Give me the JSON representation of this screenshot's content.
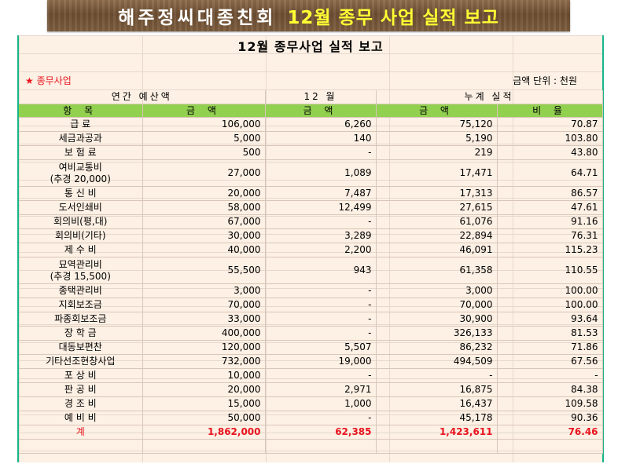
{
  "banner": {
    "org": "해주정씨대종친회",
    "title": "12월 종무 사업 실적 보고"
  },
  "sheet_title": "12월  종무사업 실적 보고",
  "section_label": "★ 종무사업",
  "unit_label": "금액 단위 : 천원",
  "header1": {
    "annual": "연간 예산액",
    "month": "12 월",
    "cumulative": "누계 실적"
  },
  "header2": {
    "item": "항  목",
    "budget": "금  액",
    "month_amount": "금  액",
    "cum_amount": "금  액",
    "ratio": "비 율"
  },
  "rows": [
    {
      "item": "급    료",
      "budget": "106,000",
      "month": "6,260",
      "cum": "75,120",
      "ratio": "70.87"
    },
    {
      "item": "세금과공과",
      "budget": "5,000",
      "month": "140",
      "cum": "5,190",
      "ratio": "103.80"
    },
    {
      "item": "보 험 료",
      "budget": "500",
      "month": "-",
      "cum": "219",
      "ratio": "43.80"
    },
    {
      "item": "여비교통비",
      "item2": "(추경 20,000)",
      "budget": "27,000",
      "month": "1,089",
      "cum": "17,471",
      "ratio": "64.71",
      "tall": true
    },
    {
      "item": "통 신 비",
      "budget": "20,000",
      "month": "7,487",
      "cum": "17,313",
      "ratio": "86.57"
    },
    {
      "item": "도서인쇄비",
      "budget": "58,000",
      "month": "12,499",
      "cum": "27,615",
      "ratio": "47.61"
    },
    {
      "item": "회의비(평,대)",
      "budget": "67,000",
      "month": "-",
      "cum": "61,076",
      "ratio": "91.16"
    },
    {
      "item": "회의비(기타)",
      "budget": "30,000",
      "month": "3,289",
      "cum": "22,894",
      "ratio": "76.31"
    },
    {
      "item": "제 수 비",
      "budget": "40,000",
      "month": "2,200",
      "cum": "46,091",
      "ratio": "115.23"
    },
    {
      "item": "묘역관리비",
      "item2": "(추경 15,500)",
      "budget": "55,500",
      "month": "943",
      "cum": "61,358",
      "ratio": "110.55",
      "tall": true
    },
    {
      "item": "종택관리비",
      "budget": "3,000",
      "month": "-",
      "cum": "3,000",
      "ratio": "100.00"
    },
    {
      "item": "지회보조금",
      "budget": "70,000",
      "month": "-",
      "cum": "70,000",
      "ratio": "100.00"
    },
    {
      "item": "파종회보조금",
      "budget": "33,000",
      "month": "-",
      "cum": "30,900",
      "ratio": "93.64"
    },
    {
      "item": "장 학 금",
      "budget": "400,000",
      "month": "-",
      "cum": "326,133",
      "ratio": "81.53"
    },
    {
      "item": "대동보편찬",
      "budget": "120,000",
      "month": "5,507",
      "cum": "86,232",
      "ratio": "71.86"
    },
    {
      "item": "기타선조현창사업",
      "budget": "732,000",
      "month": "19,000",
      "cum": "494,509",
      "ratio": "67.56"
    },
    {
      "item": "포 상 비",
      "budget": "10,000",
      "month": "-",
      "cum": "-",
      "ratio": "-"
    },
    {
      "item": "판 공 비",
      "budget": "20,000",
      "month": "2,971",
      "cum": "16,875",
      "ratio": "84.38"
    },
    {
      "item": "경 조 비",
      "budget": "15,000",
      "month": "1,000",
      "cum": "16,437",
      "ratio": "109.58"
    },
    {
      "item": "예 비 비",
      "budget": "50,000",
      "month": "-",
      "cum": "45,178",
      "ratio": "90.36"
    }
  ],
  "total": {
    "item": "계",
    "budget": "1,862,000",
    "month": "62,385",
    "cum": "1,423,611",
    "ratio": "76.46"
  },
  "colors": {
    "header_green": "#92d050",
    "total_red": "#e8141e",
    "sheet_bg": "#fdf0e4",
    "border_teal": "#19b58a"
  }
}
